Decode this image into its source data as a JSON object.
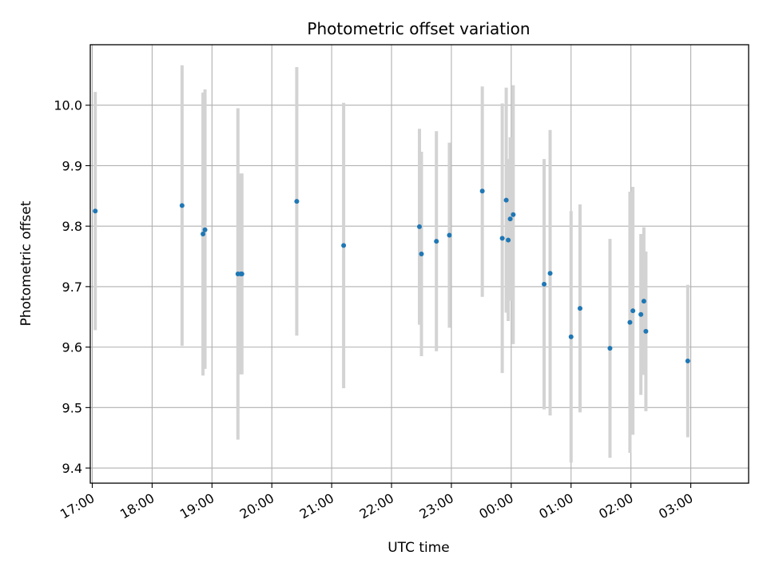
{
  "chart_data": {
    "type": "scatter",
    "title": "Photometric offset variation",
    "xlabel": "UTC time",
    "ylabel": "Photometric offset",
    "x_is_time": true,
    "x_tick_labels": [
      "17:00",
      "18:00",
      "19:00",
      "20:00",
      "21:00",
      "22:00",
      "23:00",
      "00:00",
      "01:00",
      "02:00",
      "03:00"
    ],
    "y_ticks": [
      9.4,
      9.5,
      9.6,
      9.7,
      9.8,
      9.9,
      10.0
    ],
    "y_tick_labels": [
      "9.4",
      "9.5",
      "9.6",
      "9.7",
      "9.8",
      "9.9",
      "10.0"
    ],
    "ylim": [
      9.375,
      10.1
    ],
    "xlim": [
      "16:58",
      "03:58"
    ],
    "grid": true,
    "colors": {
      "point": "#1f77b4",
      "errorbar": "#d3d3d3",
      "grid": "#b0b0b0"
    },
    "points": [
      {
        "x": "17:03",
        "y": 9.825,
        "low": 9.628,
        "high": 10.022
      },
      {
        "x": "18:30",
        "y": 9.834,
        "low": 9.602,
        "high": 10.066
      },
      {
        "x": "18:51",
        "y": 9.787,
        "low": 9.553,
        "high": 10.021
      },
      {
        "x": "18:53",
        "y": 9.794,
        "low": 9.564,
        "high": 10.026
      },
      {
        "x": "19:26",
        "y": 9.721,
        "low": 9.447,
        "high": 9.995
      },
      {
        "x": "19:29",
        "y": 9.721,
        "low": 9.555,
        "high": 9.887
      },
      {
        "x": "19:30",
        "y": 9.721,
        "low": 9.555,
        "high": 9.887
      },
      {
        "x": "20:25",
        "y": 9.841,
        "low": 9.619,
        "high": 10.063
      },
      {
        "x": "21:12",
        "y": 9.768,
        "low": 9.532,
        "high": 10.004
      },
      {
        "x": "22:28",
        "y": 9.799,
        "low": 9.637,
        "high": 9.961
      },
      {
        "x": "22:30",
        "y": 9.754,
        "low": 9.585,
        "high": 9.923
      },
      {
        "x": "22:45",
        "y": 9.775,
        "low": 9.593,
        "high": 9.957
      },
      {
        "x": "22:58",
        "y": 9.785,
        "low": 9.632,
        "high": 9.938
      },
      {
        "x": "23:31",
        "y": 9.858,
        "low": 9.683,
        "high": 10.031
      },
      {
        "x": "23:51",
        "y": 9.78,
        "low": 9.557,
        "high": 10.003
      },
      {
        "x": "23:55",
        "y": 9.843,
        "low": 9.657,
        "high": 10.029
      },
      {
        "x": "23:57",
        "y": 9.777,
        "low": 9.643,
        "high": 9.911
      },
      {
        "x": "23:59",
        "y": 9.812,
        "low": 9.677,
        "high": 9.947
      },
      {
        "x": "00:02",
        "y": 9.819,
        "low": 9.605,
        "high": 10.033
      },
      {
        "x": "00:33",
        "y": 9.704,
        "low": 9.497,
        "high": 9.911
      },
      {
        "x": "00:39",
        "y": 9.722,
        "low": 9.487,
        "high": 9.959
      },
      {
        "x": "01:00",
        "y": 9.617,
        "low": 9.409,
        "high": 9.825
      },
      {
        "x": "01:09",
        "y": 9.664,
        "low": 9.492,
        "high": 9.836
      },
      {
        "x": "01:39",
        "y": 9.598,
        "low": 9.417,
        "high": 9.779
      },
      {
        "x": "01:59",
        "y": 9.641,
        "low": 9.425,
        "high": 9.857
      },
      {
        "x": "02:02",
        "y": 9.66,
        "low": 9.455,
        "high": 9.865
      },
      {
        "x": "02:10",
        "y": 9.654,
        "low": 9.521,
        "high": 9.787
      },
      {
        "x": "02:13",
        "y": 9.676,
        "low": 9.554,
        "high": 9.798
      },
      {
        "x": "02:15",
        "y": 9.626,
        "low": 9.494,
        "high": 9.758
      },
      {
        "x": "02:57",
        "y": 9.577,
        "low": 9.451,
        "high": 9.703
      }
    ]
  }
}
